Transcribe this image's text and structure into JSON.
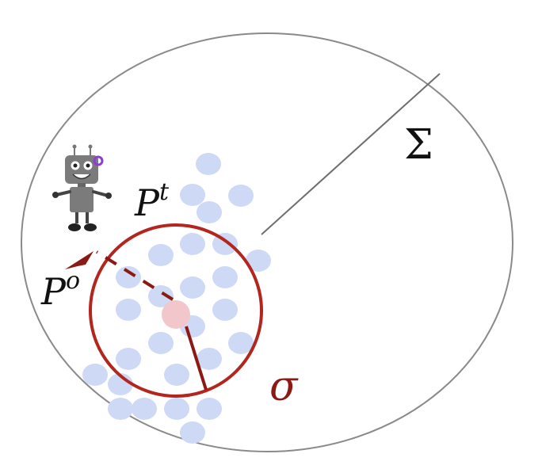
{
  "labels": {
    "outer_region": "Σ",
    "target_distribution": "P",
    "target_superscript": "t",
    "observed_distribution": "P",
    "observed_superscript": "o",
    "radius": "σ"
  },
  "colors": {
    "outer_circle": "#8a8a8a",
    "radius_line": "#6e6e6e",
    "dots": "#cdd9f5",
    "center_point": "#f2c7cc",
    "inner_circle": "#b3261e",
    "inner_radius": "#8b1a14",
    "text": "#111111"
  },
  "icons": {
    "agent": "robot-icon",
    "direction": "arrow-icon"
  }
}
